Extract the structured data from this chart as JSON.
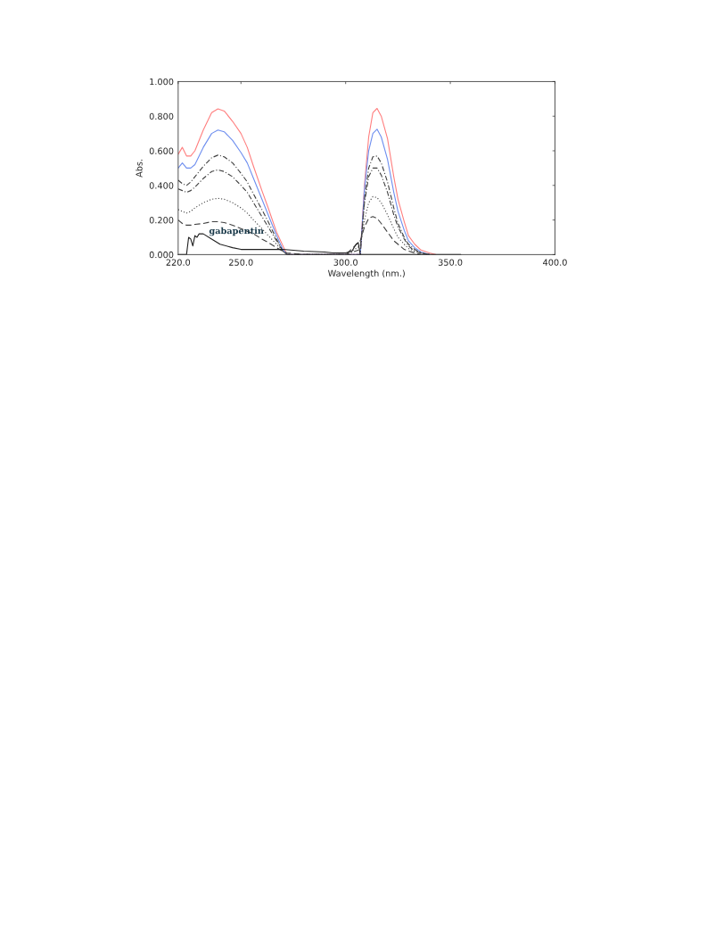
{
  "chart_data": {
    "type": "line",
    "xlabel": "Wavelength (nm.)",
    "ylabel": "Abs.",
    "legend": false,
    "grid": false,
    "xlim": [
      220,
      400
    ],
    "ylim": [
      0,
      1
    ],
    "xticks": [
      {
        "value": 220,
        "label": "220.0"
      },
      {
        "value": 250,
        "label": "250.0"
      },
      {
        "value": 300,
        "label": "300.0"
      },
      {
        "value": 350,
        "label": "350.0"
      },
      {
        "value": 400,
        "label": "400.0"
      }
    ],
    "yticks": [
      {
        "value": 0,
        "label": "0.000"
      },
      {
        "value": 0.2,
        "label": "0.200"
      },
      {
        "value": 0.4,
        "label": "0.400"
      },
      {
        "value": 0.6,
        "label": "0.600"
      },
      {
        "value": 0.8,
        "label": "0.800"
      },
      {
        "value": 1,
        "label": "1.000"
      }
    ],
    "series": [
      {
        "color": "#ff7f7f",
        "line_style": "solid",
        "x": [
          220,
          222,
          224,
          226,
          228,
          232,
          236,
          239,
          242,
          246,
          250,
          253,
          256,
          260,
          263,
          267,
          270,
          272,
          300,
          307,
          309,
          311,
          313,
          315,
          317,
          320,
          323,
          325,
          328,
          330,
          333,
          336,
          340,
          343
        ],
        "values": [
          0.58,
          0.62,
          0.57,
          0.57,
          0.6,
          0.72,
          0.82,
          0.842,
          0.83,
          0.77,
          0.7,
          0.62,
          0.51,
          0.37,
          0.27,
          0.13,
          null,
          0,
          0,
          0,
          0.4,
          0.68,
          0.82,
          0.845,
          0.8,
          0.67,
          0.45,
          0.32,
          0.19,
          0.11,
          0.06,
          0.026,
          0.01,
          0
        ]
      },
      {
        "color": "#6f8fef",
        "line_style": "solid",
        "x": [
          220,
          222,
          224,
          226,
          228,
          232,
          236,
          239,
          242,
          246,
          250,
          253,
          256,
          260,
          263,
          267,
          270,
          272,
          300,
          307,
          309,
          311,
          313,
          315,
          317,
          320,
          323,
          325,
          328,
          330,
          333,
          336,
          340
        ],
        "values": [
          0.5,
          0.53,
          0.5,
          0.5,
          0.52,
          0.62,
          0.7,
          0.72,
          0.71,
          0.66,
          0.59,
          0.53,
          0.44,
          0.32,
          0.23,
          0.11,
          0.03,
          0,
          0,
          0,
          0.38,
          0.6,
          0.7,
          0.725,
          0.68,
          0.55,
          0.36,
          0.25,
          0.14,
          0.08,
          0.04,
          0.015,
          0
        ]
      },
      {
        "color": "#404040",
        "line_style": "dashdot",
        "x": [
          220,
          222,
          224,
          226,
          228,
          232,
          236,
          239,
          242,
          246,
          250,
          253,
          256,
          260,
          263,
          267,
          270,
          272,
          300,
          307,
          309,
          311,
          313,
          315,
          317,
          320,
          323,
          325,
          328,
          330,
          333,
          336,
          340
        ],
        "values": [
          0.43,
          0.41,
          0.4,
          0.42,
          0.45,
          0.51,
          0.56,
          0.575,
          0.565,
          0.53,
          0.47,
          0.42,
          0.35,
          0.26,
          0.19,
          0.09,
          0.02,
          0,
          0,
          0,
          0.32,
          0.5,
          0.565,
          0.57,
          0.53,
          0.42,
          0.27,
          0.18,
          0.1,
          0.06,
          0.03,
          0.01,
          0
        ]
      },
      {
        "color": "#404040",
        "line_style": "dashdot",
        "x": [
          220,
          222,
          224,
          226,
          228,
          232,
          236,
          239,
          242,
          246,
          250,
          253,
          256,
          260,
          263,
          267,
          270,
          272,
          300,
          307,
          309,
          311,
          313,
          315,
          317,
          320,
          323,
          325,
          328,
          330,
          333,
          336,
          340
        ],
        "values": [
          0.38,
          0.37,
          0.36,
          0.37,
          0.39,
          0.44,
          0.48,
          0.49,
          0.48,
          0.45,
          0.4,
          0.36,
          0.3,
          0.22,
          0.16,
          0.08,
          0.02,
          0,
          0,
          0.03,
          0.3,
          0.45,
          0.5,
          0.5,
          0.46,
          0.36,
          0.23,
          0.16,
          0.09,
          0.05,
          0.02,
          0.01,
          0
        ]
      },
      {
        "color": "#404040",
        "line_style": "dotted",
        "x": [
          220,
          222,
          224,
          226,
          228,
          232,
          236,
          239,
          242,
          246,
          250,
          253,
          256,
          260,
          263,
          267,
          270,
          272,
          300,
          307,
          309,
          311,
          313,
          315,
          317,
          320,
          323,
          325,
          328,
          330,
          333,
          336,
          340
        ],
        "values": [
          0.26,
          0.25,
          0.24,
          0.25,
          0.27,
          0.3,
          0.32,
          0.325,
          0.32,
          0.3,
          0.27,
          0.24,
          0.2,
          0.15,
          0.11,
          0.06,
          0.02,
          0,
          0,
          0.05,
          0.2,
          0.3,
          0.335,
          0.33,
          0.3,
          0.23,
          0.15,
          0.1,
          0.06,
          0.035,
          0.02,
          0.01,
          0
        ]
      },
      {
        "color": "#404040",
        "line_style": "dashed",
        "x": [
          220,
          222,
          224,
          226,
          228,
          232,
          236,
          239,
          242,
          246,
          250,
          253,
          256,
          260,
          263,
          267,
          270,
          272,
          280,
          300,
          307,
          309,
          311,
          313,
          315,
          317,
          320,
          323,
          325,
          328,
          330,
          333,
          336
        ],
        "values": [
          0.2,
          0.18,
          0.17,
          0.17,
          0.175,
          0.18,
          0.19,
          0.19,
          0.185,
          0.17,
          0.15,
          0.135,
          0.12,
          0.09,
          0.07,
          0.04,
          0.02,
          0.01,
          0,
          0,
          0.08,
          0.16,
          0.21,
          0.22,
          0.21,
          0.18,
          0.13,
          0.08,
          0.06,
          0.03,
          0.02,
          0.01,
          0
        ]
      },
      {
        "name": "gabapentin",
        "color": "#202020",
        "line_style": "solid",
        "x": [
          220,
          224,
          225,
          226,
          227,
          228,
          229,
          230,
          232,
          236,
          240,
          246,
          250,
          260,
          270,
          280,
          290,
          294,
          300,
          303,
          305,
          306,
          307,
          310,
          350,
          355
        ],
        "values": [
          0,
          0,
          0.1,
          0.09,
          0.05,
          0.11,
          0.1,
          0.12,
          0.12,
          0.09,
          0.06,
          0.04,
          0.03,
          0.03,
          0.03,
          0.02,
          0.015,
          0.01,
          0.01,
          0.02,
          0.06,
          0.07,
          0,
          0,
          0,
          0
        ]
      }
    ]
  }
}
